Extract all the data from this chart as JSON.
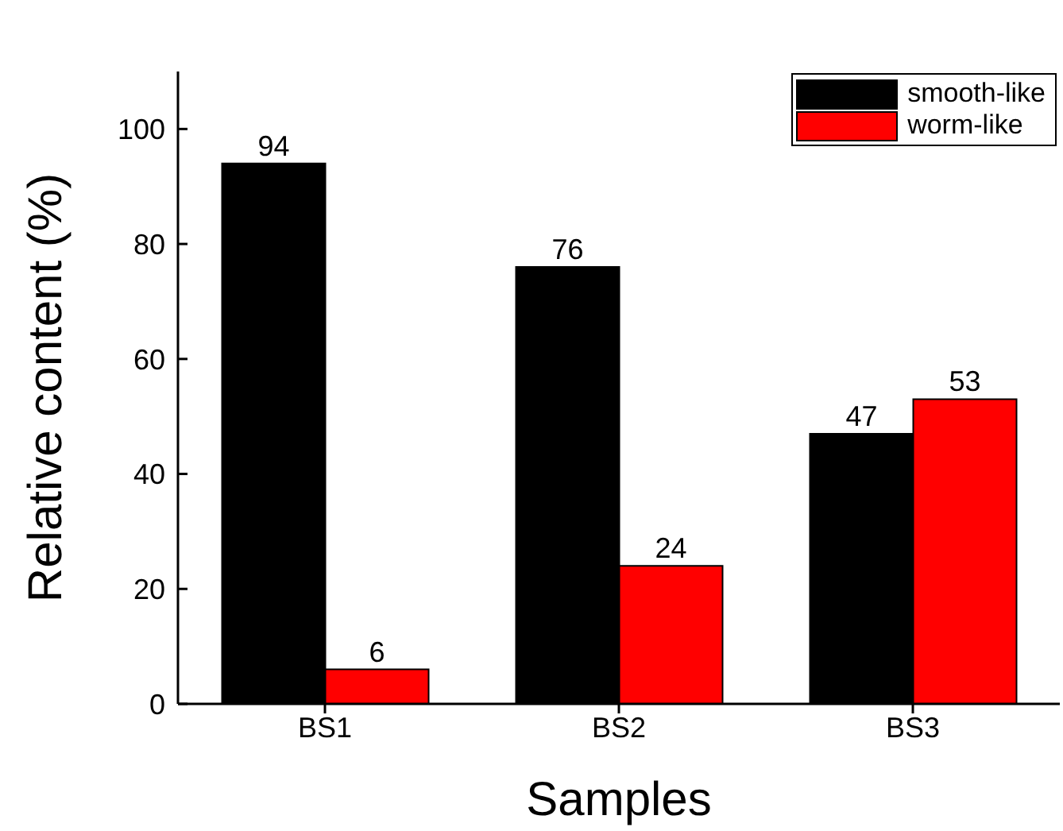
{
  "chart_data": {
    "type": "bar",
    "xlabel": "Samples",
    "ylabel": "Relative content (%)",
    "categories": [
      "BS1",
      "BS2",
      "BS3"
    ],
    "series": [
      {
        "name": "smooth-like",
        "color": "#000000",
        "values": [
          94,
          76,
          47
        ]
      },
      {
        "name": "worm-like",
        "color": "#ff0000",
        "values": [
          6,
          24,
          53
        ]
      }
    ],
    "ylim": [
      0,
      110
    ],
    "yticks": [
      0,
      20,
      40,
      60,
      80,
      100
    ],
    "grid": false,
    "legend": "top right",
    "data_labels": true
  }
}
